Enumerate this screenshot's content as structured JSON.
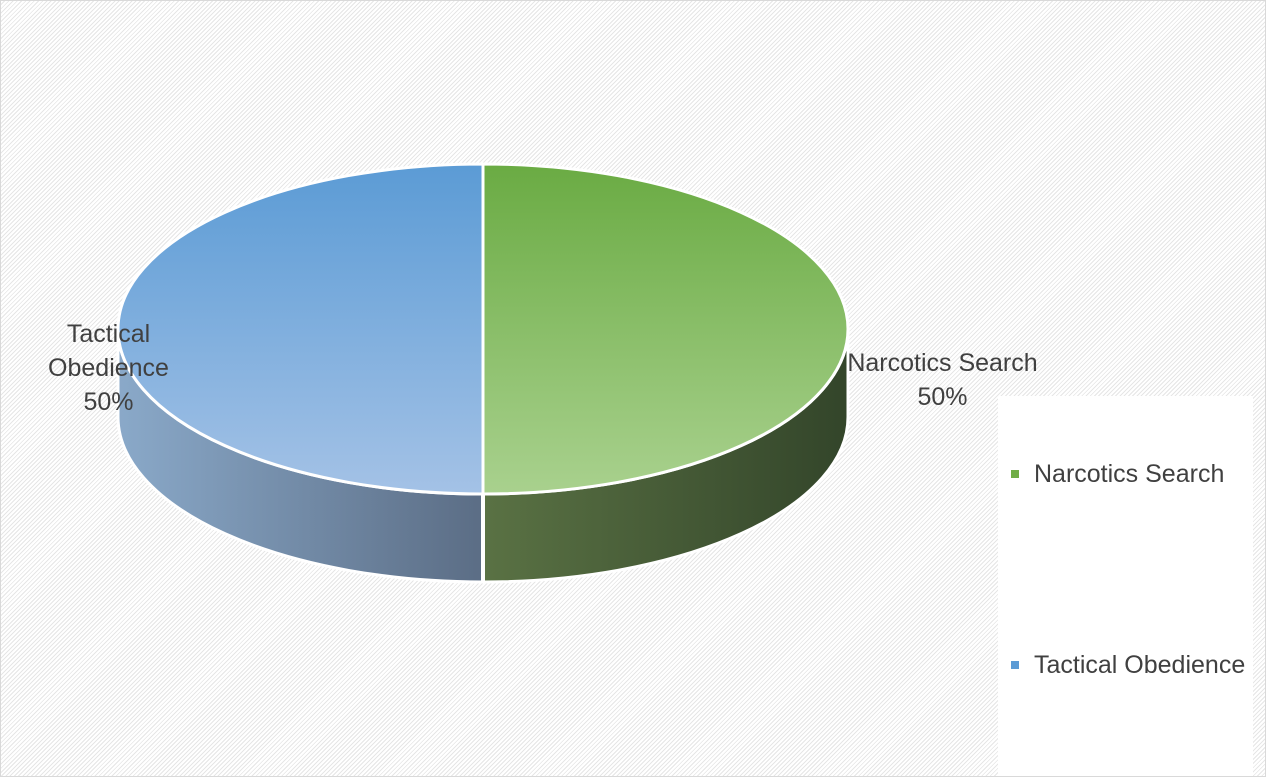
{
  "chart_data": {
    "type": "pie",
    "style": "3d",
    "title": "",
    "categories": [
      "Narcotics Search",
      "Tactical Obedience"
    ],
    "values": [
      50,
      50
    ],
    "data_labels": [
      {
        "name_lines": [
          "Narcotics Search"
        ],
        "percent": "50%"
      },
      {
        "name_lines": [
          "Tactical",
          "Obedience"
        ],
        "percent": "50%"
      }
    ],
    "colors": {
      "Narcotics Search": "#70ad47",
      "Tactical Obedience": "#5b9bd5"
    },
    "legend": {
      "placement": "right",
      "entries": [
        {
          "label": "Narcotics Search",
          "color": "#70ad47"
        },
        {
          "label": "Tactical Obedience",
          "color": "#5b9bd5"
        }
      ]
    }
  }
}
